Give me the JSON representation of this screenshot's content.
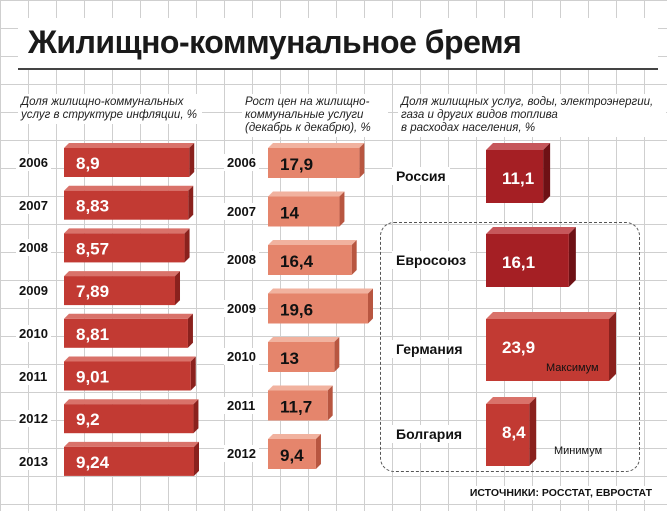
{
  "title": "Жилищно-коммунальное бремя",
  "source": "ИСТОЧНИКИ: РОССТАТ, ЕВРОСТАТ",
  "colors": {
    "dark_front": "#c23a33",
    "dark_side": "#8a211d",
    "dark_top": "#d9726a",
    "light_front": "#e5856c",
    "light_side": "#b85640",
    "light_top": "#f1b29f",
    "crimson_front": "#a51f24",
    "crimson_side": "#6e1115",
    "crimson_top": "#c6575b"
  },
  "chart_data": [
    {
      "type": "bar",
      "title": "Доля жилищно-коммунальных услуг в структуре инфляции, %",
      "title_lines": [
        "Доля жилищно-коммунальных",
        "услуг в структуре инфляции, %"
      ],
      "categories": [
        "2006",
        "2007",
        "2008",
        "2009",
        "2010",
        "2011",
        "2012",
        "2013"
      ],
      "values": [
        8.9,
        8.83,
        8.57,
        7.89,
        8.81,
        9.01,
        9.2,
        9.24
      ],
      "labels": [
        "8,9",
        "8,83",
        "8,57",
        "7,89",
        "8,81",
        "9,01",
        "9,2",
        "9,24"
      ],
      "xlim": [
        0,
        9.24
      ]
    },
    {
      "type": "bar",
      "title": "Рост цен на жилищно-коммунальные услуги (декабрь к декабрю), %",
      "title_lines": [
        "Рост цен на жилищно-",
        "коммунальные услуги",
        "(декабрь к декабрю), %"
      ],
      "categories": [
        "2006",
        "2007",
        "2008",
        "2009",
        "2010",
        "2011",
        "2012"
      ],
      "values": [
        17.9,
        14,
        16.4,
        19.6,
        13,
        11.7,
        9.4
      ],
      "labels": [
        "17,9",
        "14",
        "16,4",
        "19,6",
        "13",
        "11,7",
        "9,4"
      ],
      "xlim": [
        0,
        19.6
      ]
    },
    {
      "type": "bar",
      "title": "Доля жилищных услуг, воды, электроэнергии, газа и других видов топлива в расходах населения, %",
      "title_lines": [
        "Доля жилищных услуг, воды, электроэнергии,",
        "газа и других видов топлива",
        "в расходах населения, %"
      ],
      "categories": [
        "Россия",
        "Евросоюз",
        "Германия",
        "Болгария"
      ],
      "values": [
        11.1,
        16.1,
        23.9,
        8.4
      ],
      "labels": [
        "11,1",
        "16,1",
        "23,9",
        "8,4"
      ],
      "notes": [
        "",
        "",
        "Максимум",
        "Минимум"
      ],
      "xlim": [
        0,
        23.9
      ]
    }
  ]
}
